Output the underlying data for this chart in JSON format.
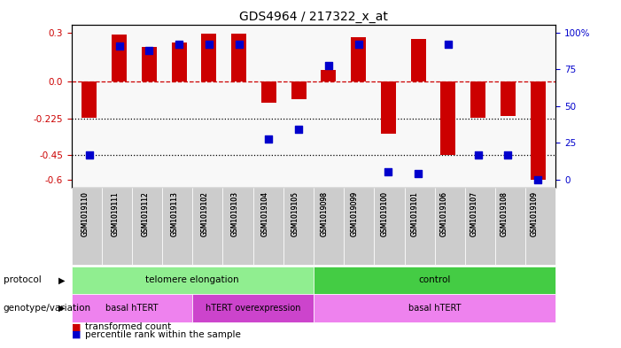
{
  "title": "GDS4964 / 217322_x_at",
  "samples": [
    "GSM1019110",
    "GSM1019111",
    "GSM1019112",
    "GSM1019113",
    "GSM1019102",
    "GSM1019103",
    "GSM1019104",
    "GSM1019105",
    "GSM1019098",
    "GSM1019099",
    "GSM1019100",
    "GSM1019101",
    "GSM1019106",
    "GSM1019107",
    "GSM1019108",
    "GSM1019109"
  ],
  "red_values": [
    -0.22,
    0.29,
    0.21,
    0.24,
    0.295,
    0.295,
    -0.13,
    -0.11,
    0.07,
    0.27,
    -0.32,
    0.26,
    -0.45,
    -0.22,
    -0.21,
    -0.6
  ],
  "blue_values": [
    -0.45,
    0.22,
    0.19,
    0.23,
    0.23,
    0.23,
    -0.35,
    -0.29,
    0.1,
    0.23,
    -0.55,
    -0.56,
    0.23,
    -0.45,
    -0.45,
    -0.6
  ],
  "ylim": [
    -0.65,
    0.35
  ],
  "yticks_left": [
    0.3,
    0.0,
    -0.225,
    -0.45,
    -0.6
  ],
  "yticks_right": [
    100,
    75,
    50,
    25,
    0
  ],
  "hline_zero": 0.0,
  "hline1": -0.225,
  "hline2": -0.45,
  "protocol_groups": [
    {
      "label": "telomere elongation",
      "start": 0,
      "end": 8,
      "color": "#90EE90"
    },
    {
      "label": "control",
      "start": 8,
      "end": 16,
      "color": "#44CC44"
    }
  ],
  "genotype_groups": [
    {
      "label": "basal hTERT",
      "start": 0,
      "end": 4,
      "color": "#EE82EE"
    },
    {
      "label": "hTERT overexpression",
      "start": 4,
      "end": 8,
      "color": "#CC44CC"
    },
    {
      "label": "basal hTERT",
      "start": 8,
      "end": 16,
      "color": "#EE82EE"
    }
  ],
  "bar_color": "#CC0000",
  "dot_color": "#0000CC",
  "background_color": "#FFFFFF",
  "tick_label_color_left": "#CC0000",
  "tick_label_color_right": "#0000CC"
}
